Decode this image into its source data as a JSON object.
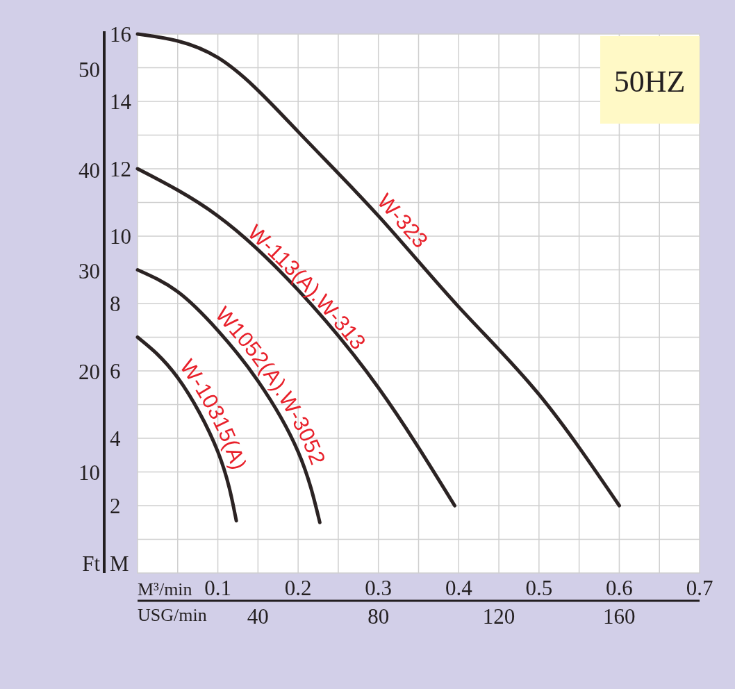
{
  "chart_data": {
    "type": "line",
    "annotations": [
      "50HZ"
    ],
    "xlabel": "M³/min",
    "x2label": "USG/min",
    "ylabel": "M",
    "y2label": "Ft",
    "xlim": [
      0,
      0.7
    ],
    "xticks": [
      0.1,
      0.2,
      0.3,
      0.4,
      0.5,
      0.6,
      0.7
    ],
    "x2lim": [
      0,
      186.7
    ],
    "x2ticks": [
      40,
      80,
      120,
      160
    ],
    "ylim": [
      0,
      16
    ],
    "yticks": [
      2,
      4,
      6,
      8,
      10,
      12,
      14,
      16
    ],
    "y2lim": [
      0,
      53.5
    ],
    "y2ticks": [
      10,
      20,
      30,
      40,
      50
    ],
    "grid": true,
    "marker": "none",
    "line_style": "solid",
    "series": [
      {
        "name": "W-323",
        "color": "#2b2323",
        "x": [
          0,
          0.1,
          0.2,
          0.3,
          0.4,
          0.5,
          0.6
        ],
        "values": [
          16,
          15.3,
          13.1,
          10.6,
          7.9,
          5.3,
          2.0
        ]
      },
      {
        "name": "W-113(A).W-313",
        "color": "#2b2323",
        "x": [
          0,
          0.1,
          0.2,
          0.3,
          0.395
        ],
        "values": [
          12,
          10.6,
          8.4,
          5.5,
          2.0
        ]
      },
      {
        "name": "W1052(A).W-3052",
        "color": "#2b2323",
        "x": [
          0,
          0.05,
          0.1,
          0.15,
          0.2,
          0.227
        ],
        "values": [
          9.0,
          8.35,
          7.2,
          5.7,
          3.6,
          1.5
        ]
      },
      {
        "name": "W-10315(A)",
        "color": "#2b2323",
        "x": [
          0,
          0.05,
          0.1,
          0.123
        ],
        "values": [
          7.0,
          5.8,
          3.6,
          1.55
        ]
      }
    ]
  }
}
